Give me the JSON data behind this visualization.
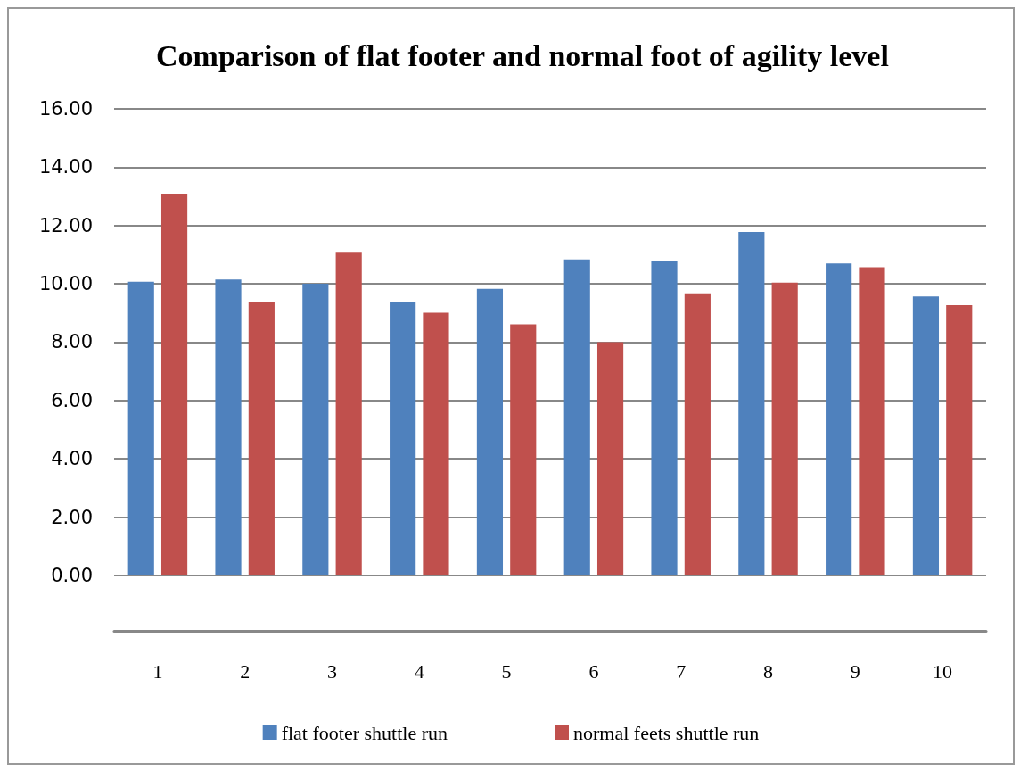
{
  "chart_data": {
    "type": "bar",
    "title": "Comparison of flat footer and normal foot of agility level",
    "categories": [
      "1",
      "2",
      "3",
      "4",
      "5",
      "6",
      "7",
      "8",
      "9",
      "10"
    ],
    "series": [
      {
        "name": "flat footer shuttle run",
        "color": "#4f81bd",
        "values": [
          10.07,
          10.15,
          10.0,
          9.38,
          9.83,
          10.84,
          10.8,
          11.78,
          10.7,
          9.57
        ]
      },
      {
        "name": "normal feets shuttle run",
        "color": "#c0504d",
        "values": [
          13.09,
          9.38,
          11.1,
          9.01,
          8.61,
          8.0,
          9.67,
          10.04,
          10.57,
          9.27
        ]
      }
    ],
    "ylim": [
      -1.9,
      16
    ],
    "yticks": [
      {
        "value": 0,
        "label": "0.00"
      },
      {
        "value": 2,
        "label": "2.00"
      },
      {
        "value": 4,
        "label": "4.00"
      },
      {
        "value": 6,
        "label": "6.00"
      },
      {
        "value": 8,
        "label": "8.00"
      },
      {
        "value": 10,
        "label": "10.00"
      },
      {
        "value": 12,
        "label": "12.00"
      },
      {
        "value": 14,
        "label": "14.00"
      },
      {
        "value": 16,
        "label": "16.00"
      }
    ],
    "grid": "y",
    "legend": "bottom"
  }
}
